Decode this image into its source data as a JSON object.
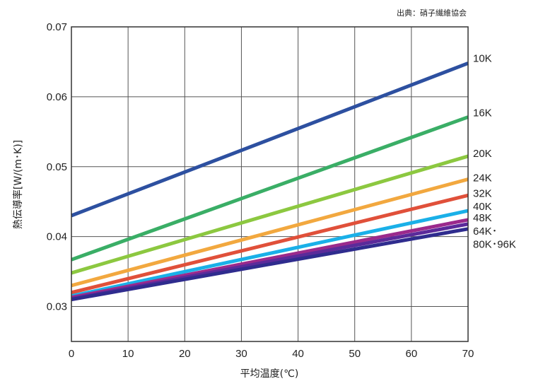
{
  "source": "出典：硝子繊維協会",
  "chart_data": {
    "type": "line",
    "xlabel": "平均温度(℃)",
    "ylabel": "熱伝導率[W/(m･K)]",
    "xlim": [
      0,
      70
    ],
    "ylim": [
      0.025,
      0.07
    ],
    "x_ticks": [
      "0",
      "10",
      "20",
      "30",
      "40",
      "50",
      "60",
      "70"
    ],
    "y_ticks": [
      "0.03",
      "0.04",
      "0.05",
      "0.06",
      "0.07"
    ],
    "grid": true,
    "series": [
      {
        "name": "10K",
        "color": "#2d50a0",
        "x": [
          0,
          70
        ],
        "y": [
          0.043,
          0.0648
        ]
      },
      {
        "name": "16K",
        "color": "#3aae66",
        "x": [
          0,
          70
        ],
        "y": [
          0.0367,
          0.0571
        ]
      },
      {
        "name": "20K",
        "color": "#8cc840",
        "x": [
          0,
          70
        ],
        "y": [
          0.0348,
          0.0515
        ]
      },
      {
        "name": "24K",
        "color": "#f2a83f",
        "x": [
          0,
          70
        ],
        "y": [
          0.033,
          0.0482
        ]
      },
      {
        "name": "32K",
        "color": "#e0503a",
        "x": [
          0,
          70
        ],
        "y": [
          0.032,
          0.0459
        ]
      },
      {
        "name": "40K",
        "color": "#1ab0e8",
        "x": [
          0,
          70
        ],
        "y": [
          0.0315,
          0.0437
        ]
      },
      {
        "name": "48K",
        "color": "#9b2a8c",
        "x": [
          0,
          70
        ],
        "y": [
          0.0313,
          0.0424
        ]
      },
      {
        "name": "64K",
        "color": "#5b2a9a",
        "x": [
          0,
          70
        ],
        "y": [
          0.0311,
          0.0418
        ]
      },
      {
        "name": "80K･96K",
        "color": "#2f2c8e",
        "x": [
          0,
          70
        ],
        "y": [
          0.031,
          0.0411
        ]
      }
    ],
    "labels": [
      {
        "text": "10K",
        "y": 0.0655
      },
      {
        "text": "16K",
        "y": 0.0577
      },
      {
        "text": "20K",
        "y": 0.0519
      },
      {
        "text": "24K",
        "y": 0.0484
      },
      {
        "text": "32K",
        "y": 0.0462
      },
      {
        "text": "40K",
        "y": 0.0443
      },
      {
        "text": "48K",
        "y": 0.0427
      },
      {
        "text": "64K･",
        "y": 0.0408
      },
      {
        "text": "80K･96K",
        "y": 0.0389
      }
    ]
  }
}
